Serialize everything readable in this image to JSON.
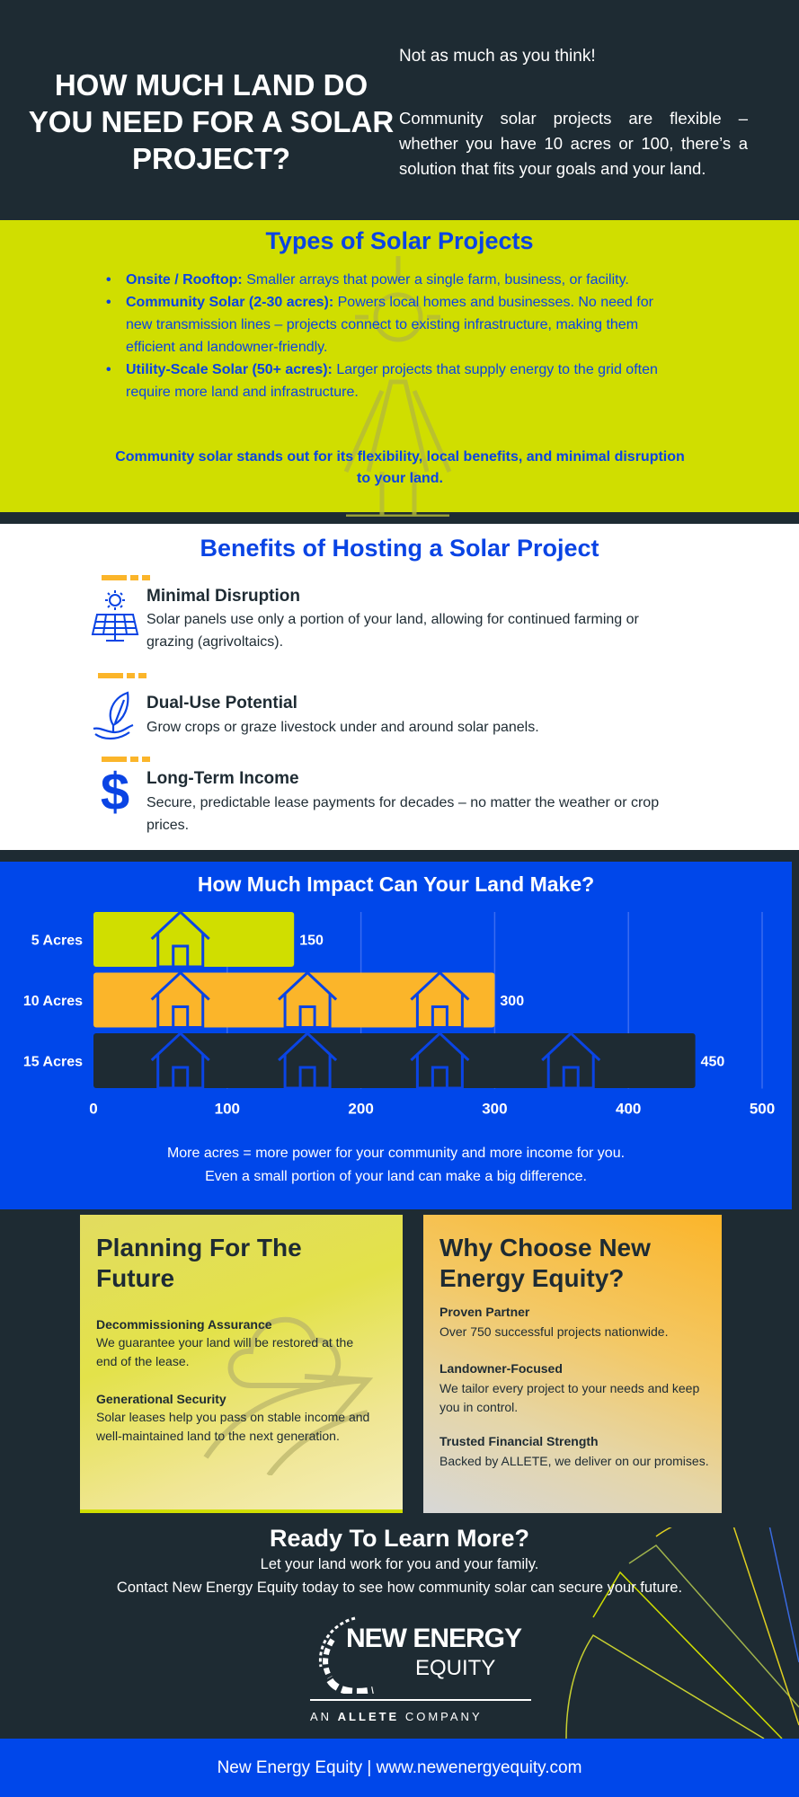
{
  "header": {
    "title": "HOW MUCH LAND DO YOU NEED FOR A SOLAR PROJECT?",
    "tagline": "Not as much as you think!",
    "paragraph": "Community solar projects are flexible – whether you have 10 acres or 100, there’s a solution that fits your goals and your land."
  },
  "types": {
    "title": "Types of Solar Projects",
    "items": [
      {
        "label": "Onsite / Rooftop:",
        "text": " Smaller arrays that power a single farm, business, or facility."
      },
      {
        "label": "Community Solar (2-30 acres):",
        "text": " Powers local homes and businesses. No need for new transmission lines – projects connect to existing infrastructure, making them efficient and landowner-friendly."
      },
      {
        "label": "Utility-Scale Solar (50+ acres):",
        "text": " Larger projects that supply energy to the grid often require more land and infrastructure."
      }
    ],
    "note": "Community solar stands out for its flexibility, local benefits, and minimal disruption to your land."
  },
  "benefits": {
    "title": "Benefits of Hosting a Solar Project",
    "items": [
      {
        "icon": "solar-panel-icon",
        "title": "Minimal Disruption",
        "text": "Solar panels use only a portion of your land, allowing for continued farming or grazing (agrivoltaics)."
      },
      {
        "icon": "plant-in-hand-icon",
        "title": "Dual-Use Potential",
        "text": "Grow crops or graze livestock under and around solar panels."
      },
      {
        "icon": "dollar-icon",
        "title": "Long-Term Income",
        "text": "Secure, predictable lease payments for decades – no matter the weather or crop prices."
      }
    ]
  },
  "chart_data": {
    "type": "bar",
    "orientation": "horizontal",
    "title": "How Much Impact Can Your Land Make?",
    "categories": [
      "5 Acres",
      "10 Acres",
      "15 Acres"
    ],
    "values": [
      150,
      300,
      450
    ],
    "data_labels": [
      "150",
      "300",
      "450"
    ],
    "bar_colors": [
      "#d0de00",
      "#fbb52a",
      "#1e2b33"
    ],
    "house_icons": [
      1,
      3,
      4
    ],
    "xlim": [
      0,
      500
    ],
    "xticks": [
      "0",
      "100",
      "200",
      "300",
      "400",
      "500"
    ],
    "grid": true,
    "caption": [
      "More acres = more power for your community and more income for you.",
      "Even a small portion of your land can make a big difference."
    ]
  },
  "cards": {
    "planning": {
      "title": "Planning For The Future",
      "items": [
        {
          "title": "Decommissioning Assurance",
          "text": "We guarantee your land will be restored at the end of the lease."
        },
        {
          "title": "Generational Security",
          "text": "Solar leases help you pass on stable income and well-maintained land to the next generation."
        }
      ]
    },
    "why": {
      "title": "Why Choose New Energy Equity?",
      "items": [
        {
          "title": "Proven Partner",
          "text": "Over 750 successful projects nationwide."
        },
        {
          "title": "Landowner-Focused",
          "text": "We tailor every project to your needs and keep you in control."
        },
        {
          "title": "Trusted Financial Strength",
          "text": "Backed by ALLETE, we deliver on our promises."
        }
      ]
    }
  },
  "cta": {
    "title": "Ready To Learn More?",
    "line1": "Let your land work for you and your family.",
    "line2": "Contact New Energy Equity today to see how community solar can secure your future."
  },
  "logo": {
    "line1": "NEW ENERGY",
    "line2": "EQUITY",
    "sub_pre": "AN ",
    "sub_bold": "ALLETE",
    "sub_post": " COMPANY"
  },
  "footer": {
    "text": "New Energy Equity | www.newenergyequity.com"
  },
  "colors": {
    "dark": "#1e2b33",
    "lime": "#d0de00",
    "blue": "#0047ea",
    "orange": "#fbb52a"
  }
}
